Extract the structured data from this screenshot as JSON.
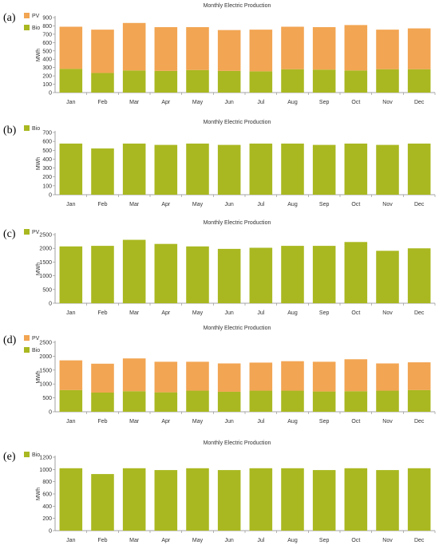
{
  "panels": [
    {
      "letter": "(a)",
      "chart_data": {
        "type": "bar",
        "stacked": true,
        "title": "Monthly Electric Production",
        "ylabel": "MWh",
        "xlabel": "",
        "ylim": [
          0,
          900
        ],
        "yticks": [
          0,
          100,
          200,
          300,
          400,
          500,
          600,
          700,
          800,
          900
        ],
        "categories": [
          "Jan",
          "Feb",
          "Mar",
          "Apr",
          "May",
          "Jun",
          "Jul",
          "Aug",
          "Sep",
          "Oct",
          "Nov",
          "Dec"
        ],
        "legend": "top-left",
        "series": [
          {
            "name": "Bio",
            "color": "#a9b820",
            "values": [
              285,
              235,
              265,
              260,
              270,
              260,
              255,
              280,
              275,
              265,
              280,
              280
            ]
          },
          {
            "name": "PV",
            "color": "#f2a552",
            "values": [
              505,
              520,
              570,
              525,
              515,
              490,
              500,
              510,
              510,
              545,
              475,
              490
            ]
          }
        ],
        "legend_order": [
          "PV",
          "Bio"
        ]
      }
    },
    {
      "letter": "(b)",
      "chart_data": {
        "type": "bar",
        "stacked": true,
        "title": "Monthly Electric Production",
        "ylabel": "MWh",
        "xlabel": "",
        "ylim": [
          0,
          700
        ],
        "yticks": [
          0,
          100,
          200,
          300,
          400,
          500,
          600,
          700
        ],
        "categories": [
          "Jan",
          "Feb",
          "Mar",
          "Apr",
          "May",
          "Jun",
          "Jul",
          "Aug",
          "Sep",
          "Oct",
          "Nov",
          "Dec"
        ],
        "legend": "top-left",
        "series": [
          {
            "name": "Bio",
            "color": "#a9b820",
            "values": [
              575,
              520,
              575,
              560,
              575,
              560,
              575,
              575,
              560,
              575,
              560,
              575
            ]
          }
        ],
        "legend_order": [
          "Bio"
        ]
      }
    },
    {
      "letter": "(c)",
      "chart_data": {
        "type": "bar",
        "stacked": true,
        "title": "Monthly Electric Production",
        "ylabel": "MWh",
        "xlabel": "",
        "ylim": [
          0,
          2500
        ],
        "yticks": [
          0,
          500,
          1000,
          1500,
          2000,
          2500
        ],
        "categories": [
          "Jan",
          "Feb",
          "Mar",
          "Apr",
          "May",
          "Jun",
          "Jul",
          "Aug",
          "Sep",
          "Oct",
          "Nov",
          "Dec"
        ],
        "legend": "top-left",
        "series": [
          {
            "name": "PV",
            "color": "#a9b820",
            "values": [
              2070,
              2090,
              2310,
              2160,
              2070,
              1980,
              2020,
              2090,
              2090,
              2230,
              1910,
              2000
            ]
          }
        ],
        "legend_order": [
          "PV"
        ]
      }
    },
    {
      "letter": "(d)",
      "chart_data": {
        "type": "bar",
        "stacked": true,
        "title": "Monthly Electric Production",
        "ylabel": "MWh",
        "xlabel": "",
        "ylim": [
          0,
          2500
        ],
        "yticks": [
          0,
          500,
          1000,
          1500,
          2000,
          2500
        ],
        "categories": [
          "Jan",
          "Feb",
          "Mar",
          "Apr",
          "May",
          "Jun",
          "Jul",
          "Aug",
          "Sep",
          "Oct",
          "Nov",
          "Dec"
        ],
        "legend": "top-left",
        "series": [
          {
            "name": "Bio",
            "color": "#a9b820",
            "values": [
              780,
              690,
              740,
              700,
              760,
              720,
              760,
              760,
              730,
              740,
              760,
              780
            ]
          },
          {
            "name": "PV",
            "color": "#f2a552",
            "values": [
              1070,
              1040,
              1180,
              1100,
              1040,
              1020,
              1010,
              1060,
              1070,
              1150,
              980,
              1000
            ]
          }
        ],
        "legend_order": [
          "PV",
          "Bio"
        ]
      }
    },
    {
      "letter": "(e)",
      "chart_data": {
        "type": "bar",
        "stacked": true,
        "title": "Monthly Electric Production",
        "ylabel": "MWh",
        "xlabel": "",
        "ylim": [
          0,
          1200
        ],
        "yticks": [
          0,
          200,
          400,
          600,
          800,
          1000,
          1200
        ],
        "categories": [
          "Jan",
          "Feb",
          "Mar",
          "Apr",
          "May",
          "Jun",
          "Jul",
          "Aug",
          "Sep",
          "Oct",
          "Nov",
          "Dec"
        ],
        "legend": "top-left",
        "series": [
          {
            "name": "Bio",
            "color": "#a9b820",
            "values": [
              1020,
              925,
              1020,
              990,
              1020,
              990,
              1020,
              1020,
              990,
              1020,
              990,
              1020
            ]
          }
        ],
        "legend_order": [
          "Bio"
        ]
      }
    }
  ]
}
